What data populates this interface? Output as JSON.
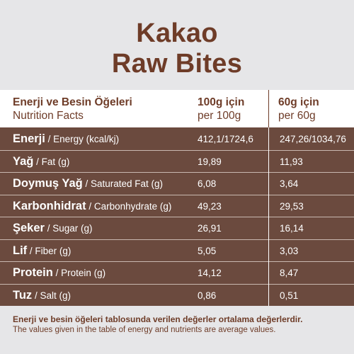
{
  "title": {
    "line1": "Kakao",
    "line2": "Raw Bites"
  },
  "header": {
    "label_tr": "Enerji ve Besin Öğeleri",
    "label_en": "Nutrition Facts",
    "col1_tr": "100g için",
    "col1_en": "per 100g",
    "col2_tr": "60g için",
    "col2_en": "per 60g"
  },
  "rows": [
    {
      "tr": "Enerji",
      "en": " / Energy (kcal/kj)",
      "v100": "412,1/1724,6",
      "v60": "247,26/1034,76"
    },
    {
      "tr": "Yağ",
      "en": " / Fat (g)",
      "v100": "19,89",
      "v60": "11,93"
    },
    {
      "tr": "Doymuş Yağ",
      "en": " / Saturated Fat (g)",
      "v100": "6,08",
      "v60": "3,64"
    },
    {
      "tr": "Karbonhidrat",
      "en": " / Carbonhydrate (g)",
      "v100": "49,23",
      "v60": "29,53"
    },
    {
      "tr": "Şeker",
      "en": " / Sugar (g)",
      "v100": "26,91",
      "v60": "16,14"
    },
    {
      "tr": "Lif",
      "en": " / Fiber (g)",
      "v100": "5,05",
      "v60": "3,03"
    },
    {
      "tr": "Protein",
      "en": " / Protein (g)",
      "v100": "14,12",
      "v60": "8,47"
    },
    {
      "tr": "Tuz",
      "en": " / Salt (g)",
      "v100": "0,86",
      "v60": "0,51"
    }
  ],
  "footer": {
    "note_tr": "Enerji ve besin öğeleri tablosunda verilen değerler ortalama değerlerdir.",
    "note_en": "The values given in the table of energy and nutrients are average values."
  },
  "colors": {
    "brown_text": "#6e3c28",
    "table_bg": "#6b4a3e",
    "band_bg": "#e6e6e8"
  }
}
